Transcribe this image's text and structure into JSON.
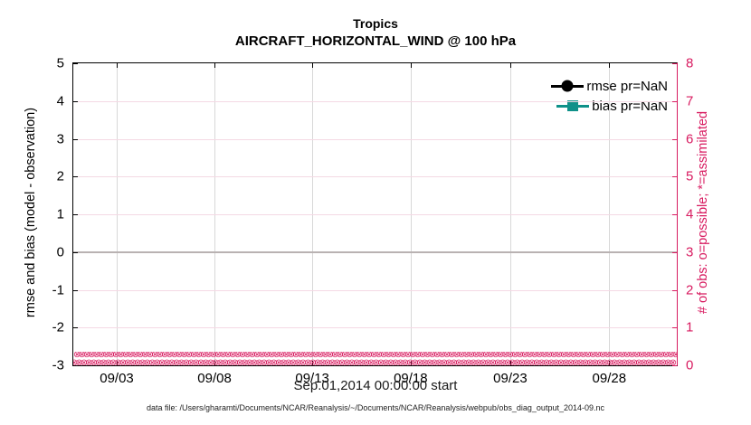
{
  "figure": {
    "title": "Tropics",
    "subtitle": "AIRCRAFT_HORIZONTAL_WIND @ 100 hPa",
    "xlabel": "Sep.01,2014 00:00:00 start",
    "ylabel_left": "rmse and bias (model - observation)",
    "ylabel_right": "# of obs: o=possible; *=assimilated",
    "footer": "data file: /Users/gharamti/Documents/NCAR/Reanalysis/~/Documents/NCAR/Reanalysis/webpub/obs_diag_output_2014-09.nc"
  },
  "colors": {
    "right_axis": "#d81b60",
    "left_axis": "#000000",
    "rmse": "#000000",
    "bias": "#0f9189",
    "zero_line": "#b9b2b2",
    "vgrid": "#d8d8d8",
    "hgrid": "#f4d9e4"
  },
  "axes": {
    "x_ticks": [
      {
        "label": "09/03",
        "pos": 7.2
      },
      {
        "label": "09/08",
        "pos": 23.4
      },
      {
        "label": "09/13",
        "pos": 39.6
      },
      {
        "label": "09/18",
        "pos": 55.9
      },
      {
        "label": "09/23",
        "pos": 72.4
      },
      {
        "label": "09/28",
        "pos": 88.8
      }
    ],
    "y_left_ticks": [
      "5",
      "4",
      "3",
      "2",
      "1",
      "0",
      "-1",
      "-2",
      "-3"
    ],
    "y_right_ticks": [
      "8",
      "7",
      "6",
      "5",
      "4",
      "3",
      "2",
      "1",
      "0"
    ]
  },
  "legend": [
    {
      "label": "rmse pr=NaN",
      "color": "#000000",
      "marker": "circle"
    },
    {
      "label": "bias pr=NaN",
      "color": "#0f9189",
      "marker": "square"
    }
  ],
  "obs_band": {
    "glyph": "⊗",
    "repeat": 124,
    "rows": 2
  },
  "chart_data": {
    "type": "line",
    "title": "Tropics",
    "subtitle": "AIRCRAFT_HORIZONTAL_WIND @ 100 hPa",
    "xlabel": "Sep.01,2014 00:00:00 start",
    "x_axis": {
      "tick_labels": [
        "09/03",
        "09/08",
        "09/13",
        "09/18",
        "09/23",
        "09/28"
      ],
      "range_start": "2014-09-01 00:00:00",
      "range_end": "2014-10-01"
    },
    "y_left": {
      "label": "rmse and bias (model - observation)",
      "ylim": [
        -3,
        5
      ],
      "ticks": [
        -3,
        -2,
        -1,
        0,
        1,
        2,
        3,
        4,
        5
      ]
    },
    "y_right": {
      "label": "# of obs: o=possible; *=assimilated",
      "ylim": [
        0,
        8
      ],
      "ticks": [
        0,
        1,
        2,
        3,
        4,
        5,
        6,
        7,
        8
      ]
    },
    "series": [
      {
        "name": "rmse pr=NaN",
        "axis": "left",
        "marker": "circle",
        "color": "#000000",
        "values_constant": null,
        "note": "all values NaN - no curve drawn"
      },
      {
        "name": "bias pr=NaN",
        "axis": "left",
        "marker": "square",
        "color": "#0f9189",
        "values_constant": null,
        "note": "all values NaN - no curve drawn"
      },
      {
        "name": "# of obs possible (o)",
        "axis": "right",
        "marker": "o",
        "color": "#d81b60",
        "values_constant": 0,
        "note": "0 at every time step through the month"
      },
      {
        "name": "# of obs assimilated (*)",
        "axis": "right",
        "marker": "*",
        "color": "#d81b60",
        "values_constant": 0,
        "note": "0 at every time step through the month"
      }
    ],
    "zero_line": {
      "axis": "left",
      "y": 0,
      "color": "#b9b2b2"
    },
    "grid": true,
    "legend_position": "top-right inside axes"
  }
}
